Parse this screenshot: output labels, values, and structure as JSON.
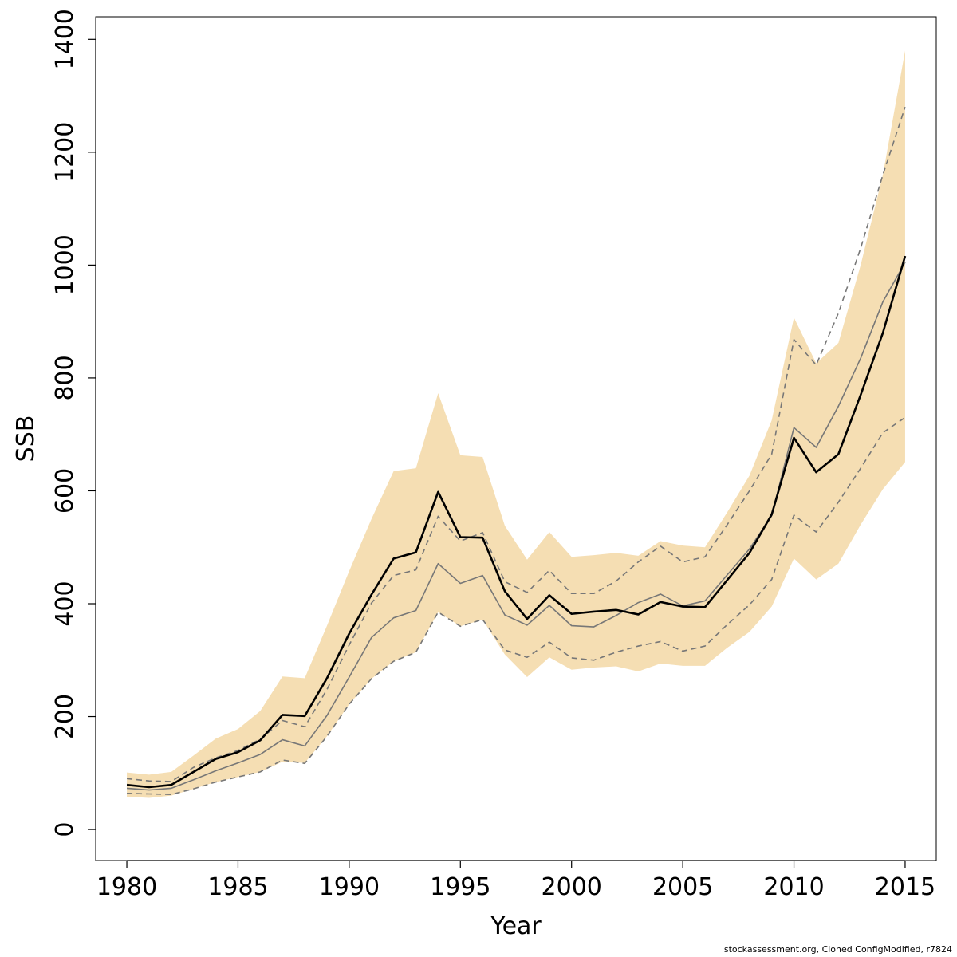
{
  "footnote": "stockassessment.org, Cloned  ConfigModified, r7824",
  "colors": {
    "band": "#f5deb3",
    "main_line": "#000000",
    "compare_line": "#777777",
    "dashed_line": "#777777"
  },
  "chart_data": {
    "type": "line",
    "xlabel": "Year",
    "ylabel": "SSB",
    "xlim": [
      1978.6,
      2016.4
    ],
    "ylim": [
      -55,
      1440
    ],
    "xticks": [
      1980,
      1985,
      1990,
      1995,
      2000,
      2005,
      2010,
      2015
    ],
    "yticks": [
      0,
      200,
      400,
      600,
      800,
      1000,
      1200,
      1400
    ],
    "grid": false,
    "legend": "none",
    "x": [
      1980,
      1981,
      1982,
      1983,
      1984,
      1985,
      1986,
      1987,
      1988,
      1989,
      1990,
      1991,
      1992,
      1993,
      1994,
      1995,
      1996,
      1997,
      1998,
      1999,
      2000,
      2001,
      2002,
      2003,
      2004,
      2005,
      2006,
      2007,
      2008,
      2009,
      2010,
      2011,
      2012,
      2013,
      2014,
      2015
    ],
    "confidence_band": {
      "upper": [
        101,
        97,
        102,
        131,
        161,
        178,
        210,
        271,
        268,
        361,
        458,
        550,
        635,
        640,
        773,
        663,
        660,
        538,
        478,
        527,
        483,
        486,
        490,
        485,
        511,
        503,
        500,
        562,
        627,
        725,
        907,
        826,
        862,
        1000,
        1160,
        1380
      ],
      "lower": [
        58,
        56,
        60,
        72,
        84,
        93,
        102,
        120,
        118,
        165,
        222,
        267,
        298,
        314,
        385,
        360,
        372,
        310,
        270,
        305,
        283,
        287,
        289,
        280,
        294,
        290,
        290,
        322,
        350,
        395,
        480,
        443,
        471,
        540,
        603,
        651
      ]
    },
    "series": [
      {
        "style": "solid-bold",
        "values": [
          79,
          75,
          79,
          102,
          125,
          137,
          158,
          203,
          201,
          268,
          347,
          416,
          480,
          491,
          598,
          518,
          517,
          422,
          373,
          415,
          382,
          386,
          389,
          381,
          403,
          395,
          394,
          442,
          490,
          558,
          694,
          633,
          665,
          770,
          880,
          1016
        ]
      },
      {
        "style": "solid-thin",
        "values": [
          73,
          70,
          73,
          88,
          104,
          118,
          133,
          159,
          148,
          202,
          270,
          340,
          375,
          388,
          471,
          436,
          450,
          380,
          362,
          397,
          361,
          359,
          379,
          402,
          417,
          396,
          405,
          451,
          497,
          556,
          712,
          677,
          750,
          835,
          935,
          1005
        ]
      },
      {
        "style": "dashed",
        "values": [
          90,
          86,
          85,
          110,
          127,
          140,
          160,
          193,
          182,
          248,
          327,
          401,
          450,
          460,
          555,
          511,
          526,
          439,
          420,
          459,
          418,
          418,
          440,
          474,
          502,
          474,
          483,
          540,
          600,
          665,
          868,
          823,
          915,
          1030,
          1160,
          1280
        ]
      },
      {
        "style": "dashed",
        "values": [
          64,
          63,
          62,
          72,
          84,
          93,
          102,
          123,
          117,
          165,
          222,
          267,
          298,
          314,
          385,
          360,
          372,
          318,
          305,
          332,
          304,
          300,
          314,
          325,
          333,
          316,
          325,
          363,
          398,
          443,
          557,
          527,
          580,
          640,
          703,
          730
        ]
      }
    ]
  }
}
